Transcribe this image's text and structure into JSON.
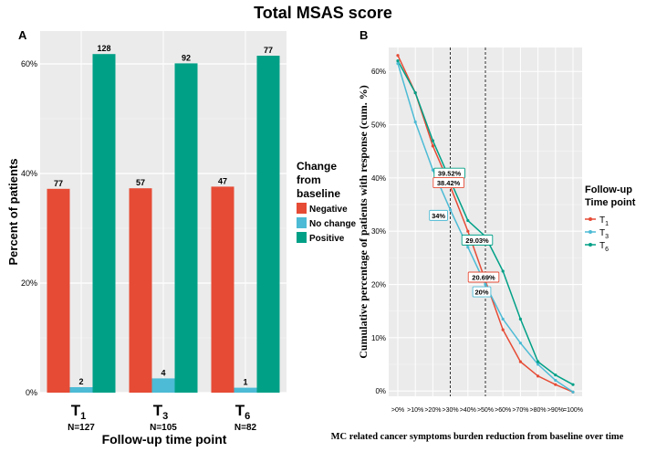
{
  "figure_title": "Total MSAS score",
  "chart_data": [
    {
      "type": "bar",
      "panel_label": "A",
      "title": "",
      "xlabel": "Follow-up time point",
      "ylabel": "Percent of patients",
      "ylim": [
        0,
        0.66
      ],
      "yticks": [
        0,
        0.2,
        0.4,
        0.6
      ],
      "ytick_labels": [
        "0%",
        "20%",
        "40%",
        "60%"
      ],
      "categories": [
        "T1",
        "T3",
        "T6"
      ],
      "category_main": [
        "T",
        "T",
        "T"
      ],
      "category_sub": [
        "1",
        "3",
        "6"
      ],
      "category_n": [
        "N=127",
        "N=105",
        "N=82"
      ],
      "series": [
        {
          "name": "Negative",
          "color": "#E64B35",
          "values": [
            0.372,
            0.373,
            0.376
          ],
          "labels": [
            "77",
            "57",
            "47"
          ]
        },
        {
          "name": "No change",
          "color": "#4DBBD5",
          "values": [
            0.01,
            0.026,
            0.009
          ],
          "labels": [
            "2",
            "4",
            "1"
          ]
        },
        {
          "name": "Positive",
          "color": "#00A087",
          "values": [
            0.618,
            0.601,
            0.615
          ],
          "labels": [
            "128",
            "92",
            "77"
          ]
        }
      ],
      "legend": {
        "title_lines": [
          "Change",
          "from",
          "baseline"
        ],
        "position": "right"
      },
      "grid": true
    },
    {
      "type": "line",
      "panel_label": "B",
      "title": "",
      "xlabel": "MC related cancer symptoms burden reduction from baseline over time",
      "ylabel": "Cumulative percentage of patients with response (cum. %)",
      "categories": [
        ">0%",
        ">10%",
        ">20%",
        ">30%",
        ">40%",
        ">50%",
        ">60%",
        ">70%",
        ">80%",
        ">90%",
        "=100%"
      ],
      "ylim": [
        -0.01,
        0.645
      ],
      "yticks": [
        0,
        0.1,
        0.2,
        0.3,
        0.4,
        0.5,
        0.6
      ],
      "ytick_labels": [
        "0%",
        "10%",
        "20%",
        "30%",
        "40%",
        "50%",
        "60%"
      ],
      "vlines": [
        ">30%",
        ">50%"
      ],
      "series": [
        {
          "name": "T1",
          "name_main": "T",
          "name_sub": "1",
          "color": "#E64B35",
          "values": [
            0.63,
            0.56,
            0.46,
            0.384,
            0.3,
            0.207,
            0.115,
            0.055,
            0.028,
            0.012,
            -0.002
          ]
        },
        {
          "name": "T3",
          "name_main": "T",
          "name_sub": "3",
          "color": "#4DBBD5",
          "values": [
            0.615,
            0.505,
            0.415,
            0.34,
            0.27,
            0.2,
            0.135,
            0.09,
            0.05,
            0.02,
            -0.002
          ]
        },
        {
          "name": "T6",
          "name_main": "T",
          "name_sub": "6",
          "color": "#00A087",
          "values": [
            0.62,
            0.56,
            0.47,
            0.395,
            0.32,
            0.29,
            0.225,
            0.135,
            0.055,
            0.03,
            0.012
          ]
        }
      ],
      "annotations": [
        {
          "text": "39.52%",
          "series": "T6",
          "x": ">30%",
          "value": 0.3952
        },
        {
          "text": "38.42%",
          "series": "T1",
          "x": ">30%",
          "value": 0.3842
        },
        {
          "text": "34%",
          "series": "T3",
          "x": ">30%",
          "value": 0.34
        },
        {
          "text": "29.03%",
          "series": "T6",
          "x": ">50%",
          "value": 0.2903
        },
        {
          "text": "20.69%",
          "series": "T1",
          "x": ">50%",
          "value": 0.2069
        },
        {
          "text": "20%",
          "series": "T3",
          "x": ">50%",
          "value": 0.2
        }
      ],
      "legend": {
        "title_lines": [
          "Follow-up",
          "Time point"
        ],
        "position": "right"
      },
      "grid": true
    }
  ]
}
